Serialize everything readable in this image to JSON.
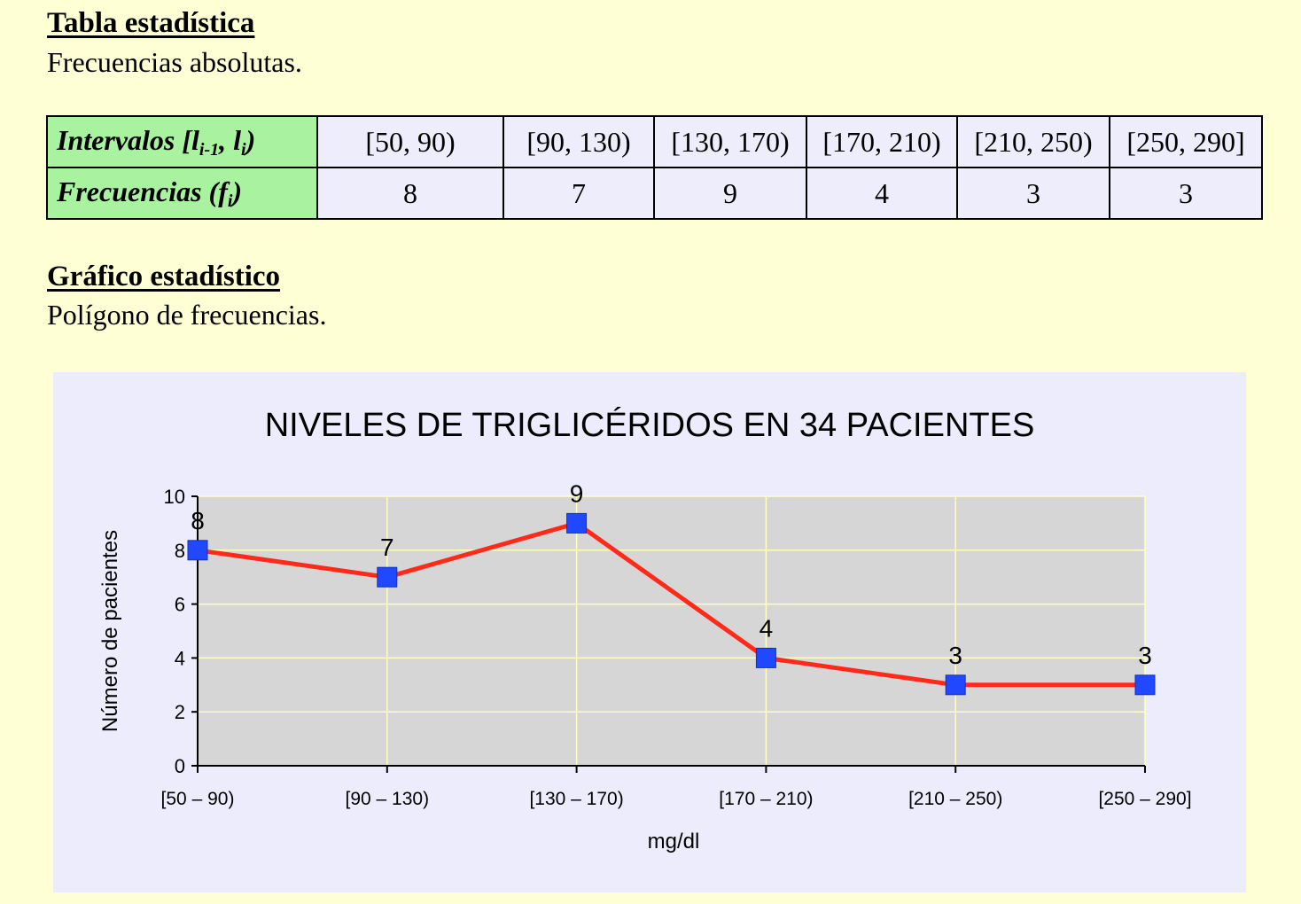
{
  "header": {
    "table_title": "Tabla estadística",
    "table_subtitle": "Frecuencias absolutas.",
    "chart_section_title": "Gráfico estadístico",
    "chart_section_subtitle": "Polígono de frecuencias."
  },
  "table": {
    "row1_label_main": "Intervalos [l",
    "row1_label_sub1": "i-1",
    "row1_label_mid": ", l",
    "row1_label_sub2": "i",
    "row1_label_end": ")",
    "row2_label_main": "Frecuencias (f",
    "row2_label_sub": "i",
    "row2_label_end": ")",
    "intervals": [
      "[50, 90)",
      "[90, 130)",
      "[130, 170)",
      "[170, 210)",
      "[210, 250)",
      "[250, 290]"
    ],
    "frequencies": [
      "8",
      "7",
      "9",
      "4",
      "3",
      "3"
    ]
  },
  "chart_data": {
    "type": "line",
    "title": "NIVELES DE TRIGLICÉRIDOS EN 34 PACIENTES",
    "xlabel": "mg/dl",
    "ylabel": "Número de pacientes",
    "categories": [
      "[50 – 90)",
      "[90 – 130)",
      "[130 – 170)",
      "[170 – 210)",
      "[210 – 250)",
      "[250 – 290]"
    ],
    "values": [
      8,
      7,
      9,
      4,
      3,
      3
    ],
    "data_labels": [
      "8",
      "7",
      "9",
      "4",
      "3",
      "3"
    ],
    "ylim": [
      0,
      10
    ],
    "yticks": [
      0,
      2,
      4,
      6,
      8,
      10
    ],
    "grid": true,
    "legend": "none",
    "colors": {
      "line": "#ff2a1a",
      "marker": "#1f48ff",
      "plot_background": "#d6d6d6",
      "grid": "#ffffc0",
      "panel_background": "#ececfc"
    }
  }
}
